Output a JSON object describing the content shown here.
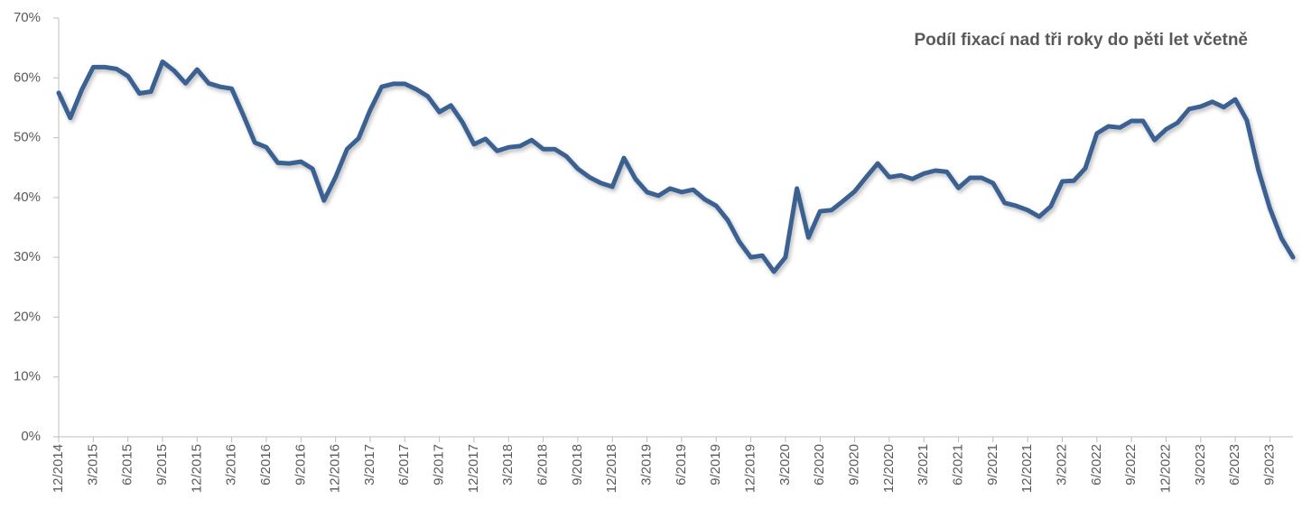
{
  "chart_data": {
    "type": "line",
    "title": "Podíl fixací nad tři roky do pěti let včetně",
    "categories": [
      "12/2014",
      null,
      null,
      "3/2015",
      null,
      null,
      "6/2015",
      null,
      null,
      "9/2015",
      null,
      null,
      "12/2015",
      null,
      null,
      "3/2016",
      null,
      null,
      "6/2016",
      null,
      null,
      "9/2016",
      null,
      null,
      "12/2016",
      null,
      null,
      "3/2017",
      null,
      null,
      "6/2017",
      null,
      null,
      "9/2017",
      null,
      null,
      "12/2017",
      null,
      null,
      "3/2018",
      null,
      null,
      "6/2018",
      null,
      null,
      "9/2018",
      null,
      null,
      "12/2018",
      null,
      null,
      "3/2019",
      null,
      null,
      "6/2019",
      null,
      null,
      "9/2019",
      null,
      null,
      "12/2019",
      null,
      null,
      "3/2020",
      null,
      null,
      "6/2020",
      null,
      null,
      "9/2020",
      null,
      null,
      "12/2020",
      null,
      null,
      "3/2021",
      null,
      null,
      "6/2021",
      null,
      null,
      "9/2021",
      null,
      null,
      "12/2021",
      null,
      null,
      "3/2022",
      null,
      null,
      "6/2022",
      null,
      null,
      "9/2022",
      null,
      null,
      "12/2022",
      null,
      null,
      "3/2023",
      null,
      null,
      "6/2023",
      null,
      null,
      "9/2023",
      null,
      null
    ],
    "series": [
      {
        "name": "Podíl fixací nad tři roky do pěti let včetně",
        "color": "#3b6192",
        "values": [
          57.5,
          53.3,
          58,
          61.8,
          61.8,
          61.5,
          60.3,
          57.4,
          57.7,
          62.7,
          61.2,
          59.1,
          61.4,
          59.1,
          58.5,
          58.2,
          53.8,
          49.2,
          48.4,
          45.8,
          45.7,
          46,
          44.8,
          39.5,
          43.4,
          48.1,
          49.9,
          54.6,
          58.5,
          59,
          59,
          58.1,
          56.9,
          54.3,
          55.4,
          52.6,
          48.9,
          49.8,
          47.8,
          48.4,
          48.6,
          49.6,
          48.1,
          48.1,
          46.9,
          44.8,
          43.4,
          42.4,
          41.8,
          46.6,
          43.1,
          40.9,
          40.3,
          41.5,
          40.9,
          41.3,
          39.7,
          38.6,
          36.2,
          32.6,
          30,
          30.3,
          27.6,
          30,
          41.5,
          33.3,
          37.7,
          37.9,
          39.4,
          41,
          43.4,
          45.7,
          43.4,
          43.7,
          43.1,
          44,
          44.5,
          44.3,
          41.6,
          43.3,
          43.3,
          42.4,
          39.1,
          38.6,
          37.9,
          36.8,
          38.5,
          42.7,
          42.8,
          44.9,
          50.7,
          51.9,
          51.7,
          52.8,
          52.8,
          49.6,
          51.4,
          52.5,
          54.8,
          55.2,
          56,
          55.1,
          56.4,
          52.9,
          44.6,
          38.2,
          33.2,
          30
        ]
      }
    ],
    "ylim": [
      0,
      70
    ],
    "yticks": [
      {
        "value": 0,
        "label": "0%"
      },
      {
        "value": 10,
        "label": "10%"
      },
      {
        "value": 20,
        "label": "20%"
      },
      {
        "value": 30,
        "label": "30%"
      },
      {
        "value": 40,
        "label": "40%"
      },
      {
        "value": 50,
        "label": "50%"
      },
      {
        "value": 60,
        "label": "60%"
      },
      {
        "value": 70,
        "label": "70%"
      }
    ],
    "grid": false
  }
}
